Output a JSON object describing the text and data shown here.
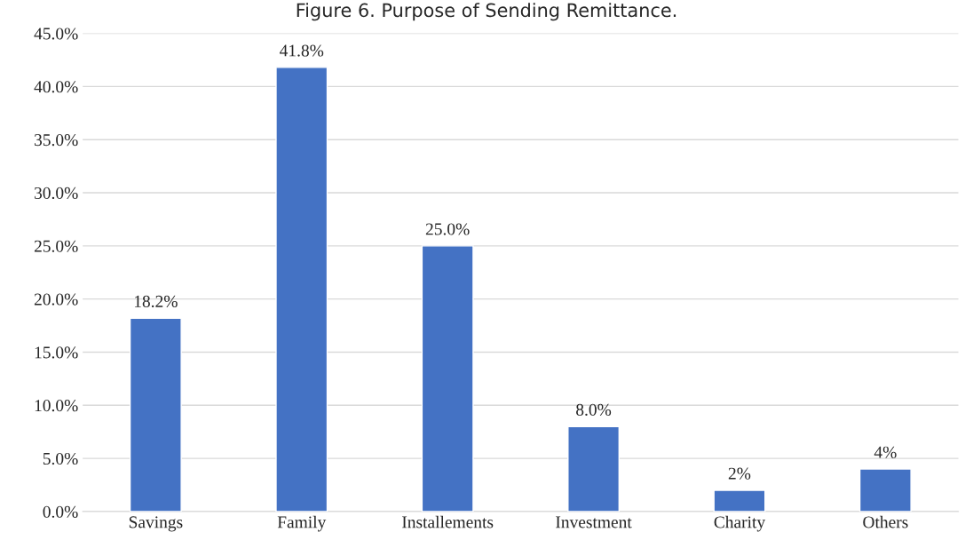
{
  "chart_data": {
    "type": "bar",
    "title": "Figure 6. Purpose of Sending Remittance.",
    "categories": [
      "Savings",
      "Family",
      "Installements",
      "Investment",
      "Charity",
      "Others"
    ],
    "values": [
      18.2,
      41.8,
      25.0,
      8.0,
      2,
      4
    ],
    "value_labels": [
      "18.2%",
      "41.8%",
      "25.0%",
      "8.0%",
      "2%",
      "4%"
    ],
    "color": "#4472c4",
    "ylim": [
      0,
      45
    ],
    "yticks": [
      {
        "value": 0,
        "label": "0.0%"
      },
      {
        "value": 5,
        "label": "5.0%"
      },
      {
        "value": 10,
        "label": "10.0%"
      },
      {
        "value": 15,
        "label": "15.0%"
      },
      {
        "value": 20,
        "label": "20.0%"
      },
      {
        "value": 25,
        "label": "25.0%"
      },
      {
        "value": 30,
        "label": "30.0%"
      },
      {
        "value": 35,
        "label": "35.0%"
      },
      {
        "value": 40,
        "label": "40.0%"
      },
      {
        "value": 45,
        "label": "45.0%"
      }
    ],
    "grid": "y"
  }
}
